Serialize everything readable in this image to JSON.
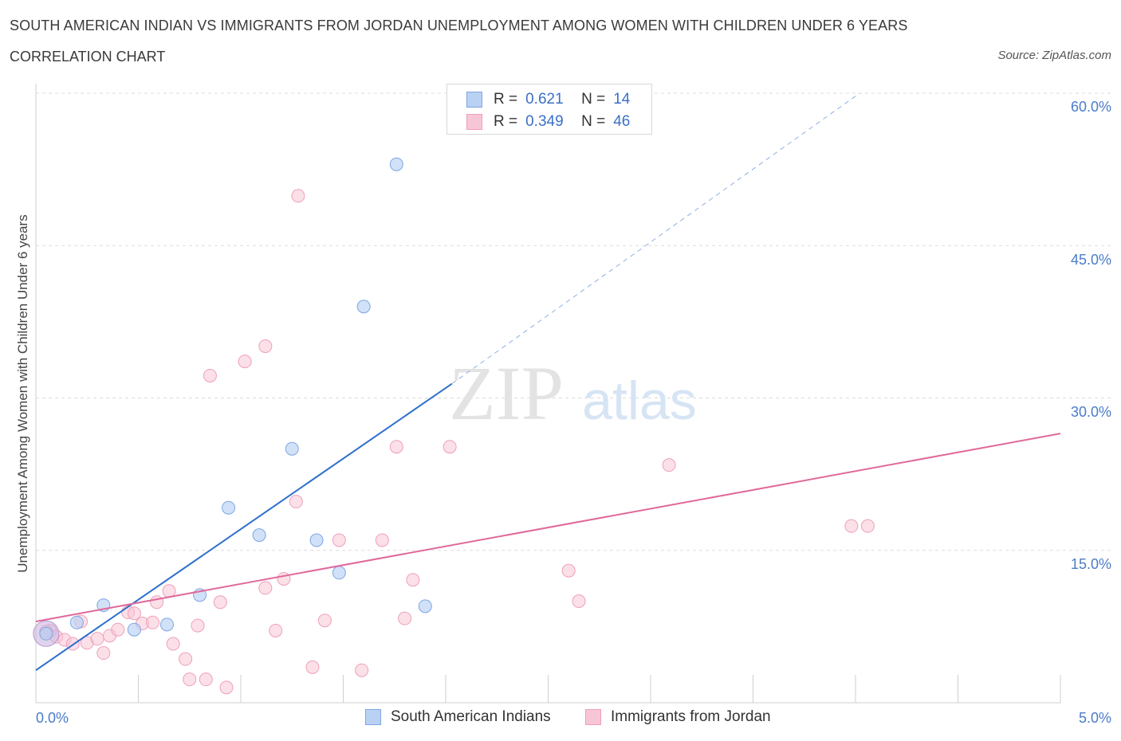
{
  "header": {
    "title": "SOUTH AMERICAN INDIAN VS IMMIGRANTS FROM JORDAN UNEMPLOYMENT AMONG WOMEN WITH CHILDREN UNDER 6 YEARS",
    "subtitle": "CORRELATION CHART",
    "source": "Source: ZipAtlas.com"
  },
  "watermark": {
    "zip": "ZIP",
    "atlas": "atlas"
  },
  "legend": {
    "rows": [
      {
        "r_label": "R =",
        "r_value": "0.621",
        "n_label": "N =",
        "n_value": "14"
      },
      {
        "r_label": "R =",
        "r_value": "0.349",
        "n_label": "N =",
        "n_value": "46"
      }
    ]
  },
  "bottom_legend": [
    "South American Indians",
    "Immigrants from Jordan"
  ],
  "colors": {
    "blue_fill": "#b9d1f3",
    "blue_stroke": "#7ea6e3",
    "blue_line": "#2d6fcc",
    "pink_fill": "#f7c6d6",
    "pink_stroke": "#ef9fba",
    "pink_line": "#e0699a",
    "grid": "#dcdcdc",
    "axis_text": "#4a7cc9"
  },
  "chart_data": {
    "type": "scatter",
    "title": "SOUTH AMERICAN INDIAN VS IMMIGRANTS FROM JORDAN UNEMPLOYMENT AMONG WOMEN WITH CHILDREN UNDER 6 YEARS",
    "xlabel": "",
    "ylabel": "Unemployment Among Women with Children Under 6 years",
    "xlim": [
      0,
      5
    ],
    "ylim": [
      0,
      60
    ],
    "x_ticks_labels": [
      "0.0%",
      "5.0%"
    ],
    "y_ticks": [
      15,
      30,
      45,
      60
    ],
    "y_ticks_labels": [
      "15.0%",
      "30.0%",
      "45.0%",
      "60.0%"
    ],
    "grid": true,
    "legend_position": "top-center",
    "series": [
      {
        "name": "South American Indians",
        "points": [
          [
            0.05,
            6.8
          ],
          [
            0.2,
            7.9
          ],
          [
            0.33,
            9.6
          ],
          [
            0.48,
            7.2
          ],
          [
            0.64,
            7.7
          ],
          [
            0.8,
            10.6
          ],
          [
            0.94,
            19.2
          ],
          [
            1.09,
            16.5
          ],
          [
            1.25,
            25.0
          ],
          [
            1.37,
            16.0
          ],
          [
            1.48,
            12.8
          ],
          [
            1.6,
            39.0
          ],
          [
            1.76,
            53.0
          ],
          [
            1.9,
            9.5
          ]
        ],
        "trend": {
          "x": [
            0.0,
            2.03
          ],
          "y": [
            3.2,
            31.4
          ],
          "x_dashed_end": 4.02,
          "y_dashed_end": 60.0
        }
      },
      {
        "name": "Immigrants from Jordan",
        "points": [
          [
            0.07,
            7.1
          ],
          [
            0.1,
            6.5
          ],
          [
            0.14,
            6.2
          ],
          [
            0.18,
            5.8
          ],
          [
            0.22,
            8.0
          ],
          [
            0.25,
            5.9
          ],
          [
            0.3,
            6.3
          ],
          [
            0.33,
            4.9
          ],
          [
            0.36,
            6.6
          ],
          [
            0.4,
            7.2
          ],
          [
            0.45,
            8.9
          ],
          [
            0.48,
            8.8
          ],
          [
            0.52,
            7.8
          ],
          [
            0.57,
            7.9
          ],
          [
            0.59,
            9.9
          ],
          [
            0.65,
            11.0
          ],
          [
            0.67,
            5.8
          ],
          [
            0.73,
            4.3
          ],
          [
            0.75,
            2.3
          ],
          [
            0.79,
            7.6
          ],
          [
            0.83,
            2.3
          ],
          [
            0.85,
            32.2
          ],
          [
            0.9,
            9.9
          ],
          [
            0.93,
            1.5
          ],
          [
            1.02,
            33.6
          ],
          [
            1.12,
            11.3
          ],
          [
            1.12,
            35.1
          ],
          [
            1.17,
            7.1
          ],
          [
            1.21,
            12.2
          ],
          [
            1.27,
            19.8
          ],
          [
            1.28,
            49.9
          ],
          [
            1.35,
            3.5
          ],
          [
            1.41,
            8.1
          ],
          [
            1.48,
            16.0
          ],
          [
            1.59,
            3.2
          ],
          [
            1.69,
            16.0
          ],
          [
            1.76,
            25.2
          ],
          [
            1.8,
            8.3
          ],
          [
            1.84,
            12.1
          ],
          [
            2.02,
            25.2
          ],
          [
            2.6,
            13.0
          ],
          [
            2.65,
            10.0
          ],
          [
            3.09,
            23.4
          ],
          [
            3.98,
            17.4
          ],
          [
            4.06,
            17.4
          ],
          [
            0.05,
            7.0
          ]
        ],
        "trend": {
          "x": [
            0.0,
            5.0
          ],
          "y": [
            8.0,
            26.5
          ]
        }
      }
    ]
  }
}
